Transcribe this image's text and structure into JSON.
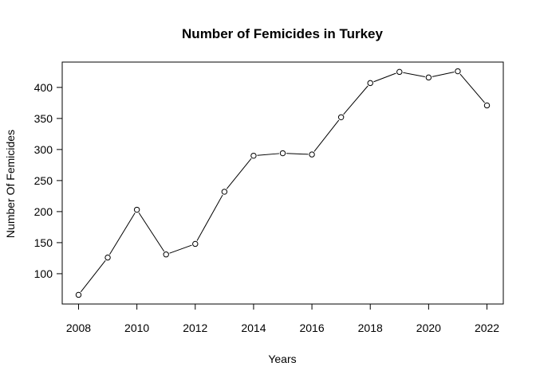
{
  "chart_data": {
    "type": "line",
    "title": "Number of Femicides in Turkey",
    "xlabel": "Years",
    "ylabel": "Number Of Femicides",
    "x": [
      2008,
      2009,
      2010,
      2011,
      2012,
      2013,
      2014,
      2015,
      2016,
      2017,
      2018,
      2019,
      2020,
      2021,
      2022
    ],
    "series": [
      {
        "values": [
          66,
          126,
          203,
          131,
          148,
          232,
          290,
          294,
          292,
          352,
          407,
          425,
          416,
          426,
          371
        ]
      }
    ],
    "xticks": [
      2008,
      2010,
      2012,
      2014,
      2016,
      2018,
      2020,
      2022
    ],
    "yticks": [
      100,
      150,
      200,
      250,
      300,
      350,
      400
    ],
    "xlim": [
      2007.44,
      2022.56
    ],
    "ylim": [
      51.2,
      440.8
    ],
    "grid": false,
    "marker": "open-circle",
    "line_color": "#000000"
  }
}
